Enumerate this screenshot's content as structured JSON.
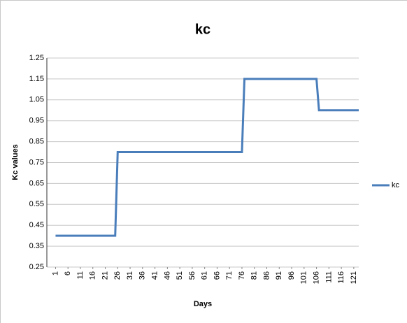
{
  "chart_data": {
    "type": "line",
    "title": "kc",
    "x_label": "Days",
    "y_label": "Kc values",
    "x": [
      1,
      25,
      26,
      76,
      77,
      106,
      107,
      123
    ],
    "series": [
      {
        "name": "kc",
        "color": "#4a7ebb",
        "values": [
          0.4,
          0.4,
          0.8,
          0.8,
          1.15,
          1.15,
          1.0,
          1.0
        ]
      }
    ],
    "xlim": [
      -2.5,
      123
    ],
    "xticks": [
      1,
      6,
      11,
      16,
      21,
      26,
      31,
      36,
      41,
      46,
      51,
      56,
      61,
      66,
      71,
      76,
      81,
      86,
      91,
      96,
      101,
      106,
      111,
      116,
      121
    ],
    "ylim": [
      0.25,
      1.25
    ],
    "yticks": [
      0.25,
      0.35,
      0.45,
      0.55,
      0.65,
      0.75,
      0.85,
      0.95,
      1.05,
      1.15,
      1.25
    ],
    "grid": true,
    "legend": "right"
  }
}
